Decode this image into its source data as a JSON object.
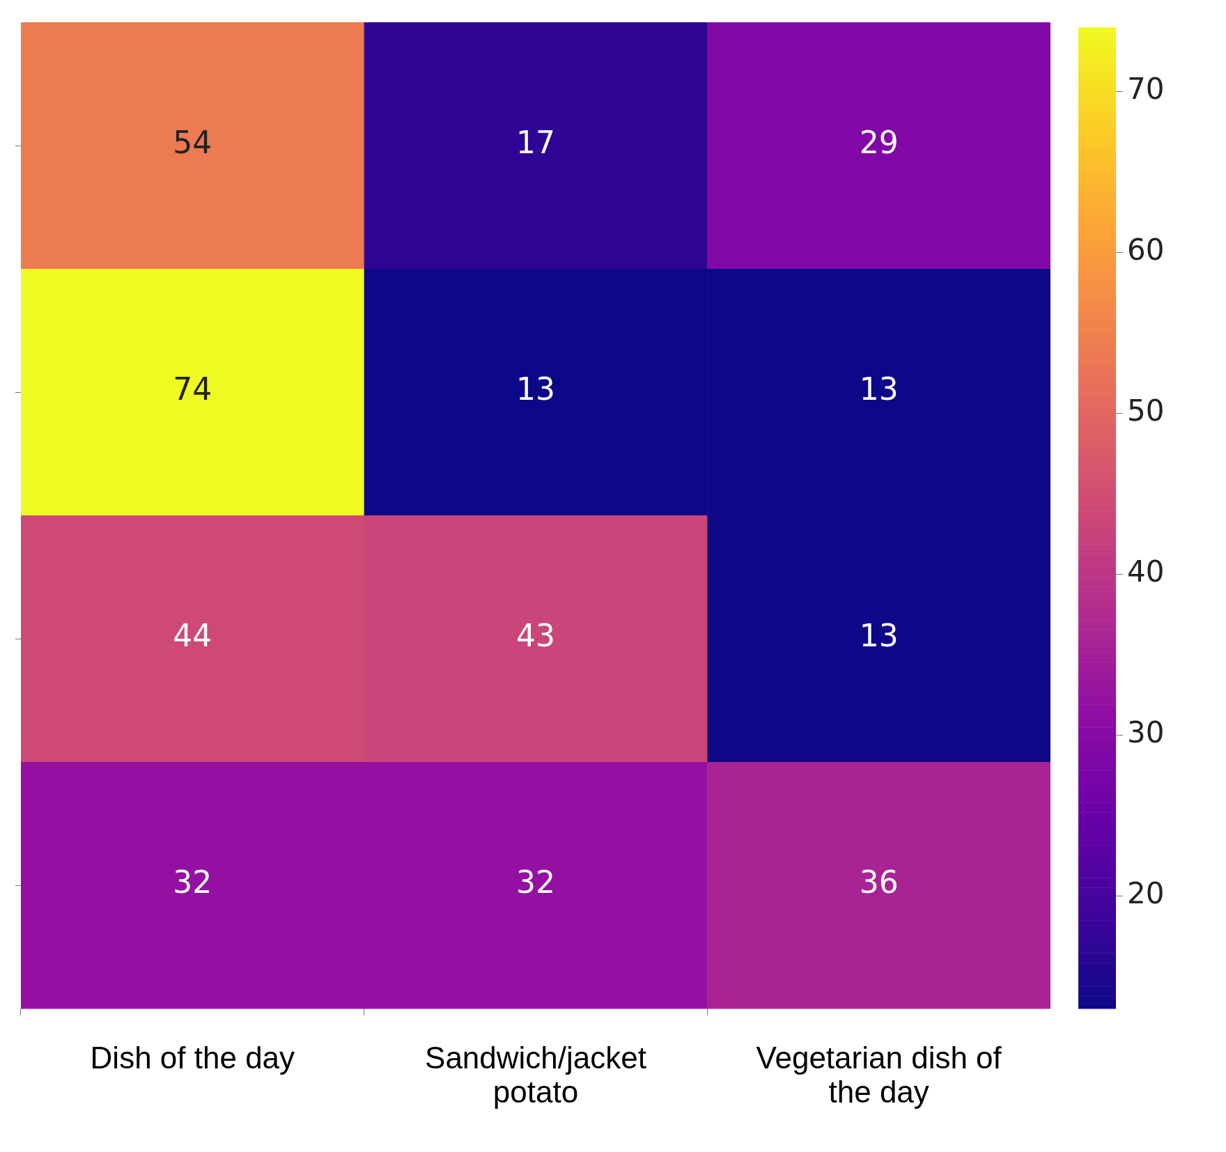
{
  "chart_data": {
    "type": "heatmap",
    "categories": [
      "Dish of the day",
      "Sandwich/jacket potato",
      "Vegetarian dish of the day"
    ],
    "y_categories": [
      null,
      null,
      null,
      null
    ],
    "cells": [
      [
        54,
        17,
        29
      ],
      [
        74,
        13,
        13
      ],
      [
        44,
        43,
        13
      ],
      [
        32,
        32,
        36
      ]
    ],
    "clim": [
      13,
      74
    ],
    "cticks": [
      20,
      30,
      40,
      50,
      60,
      70
    ],
    "data_labels": true
  }
}
